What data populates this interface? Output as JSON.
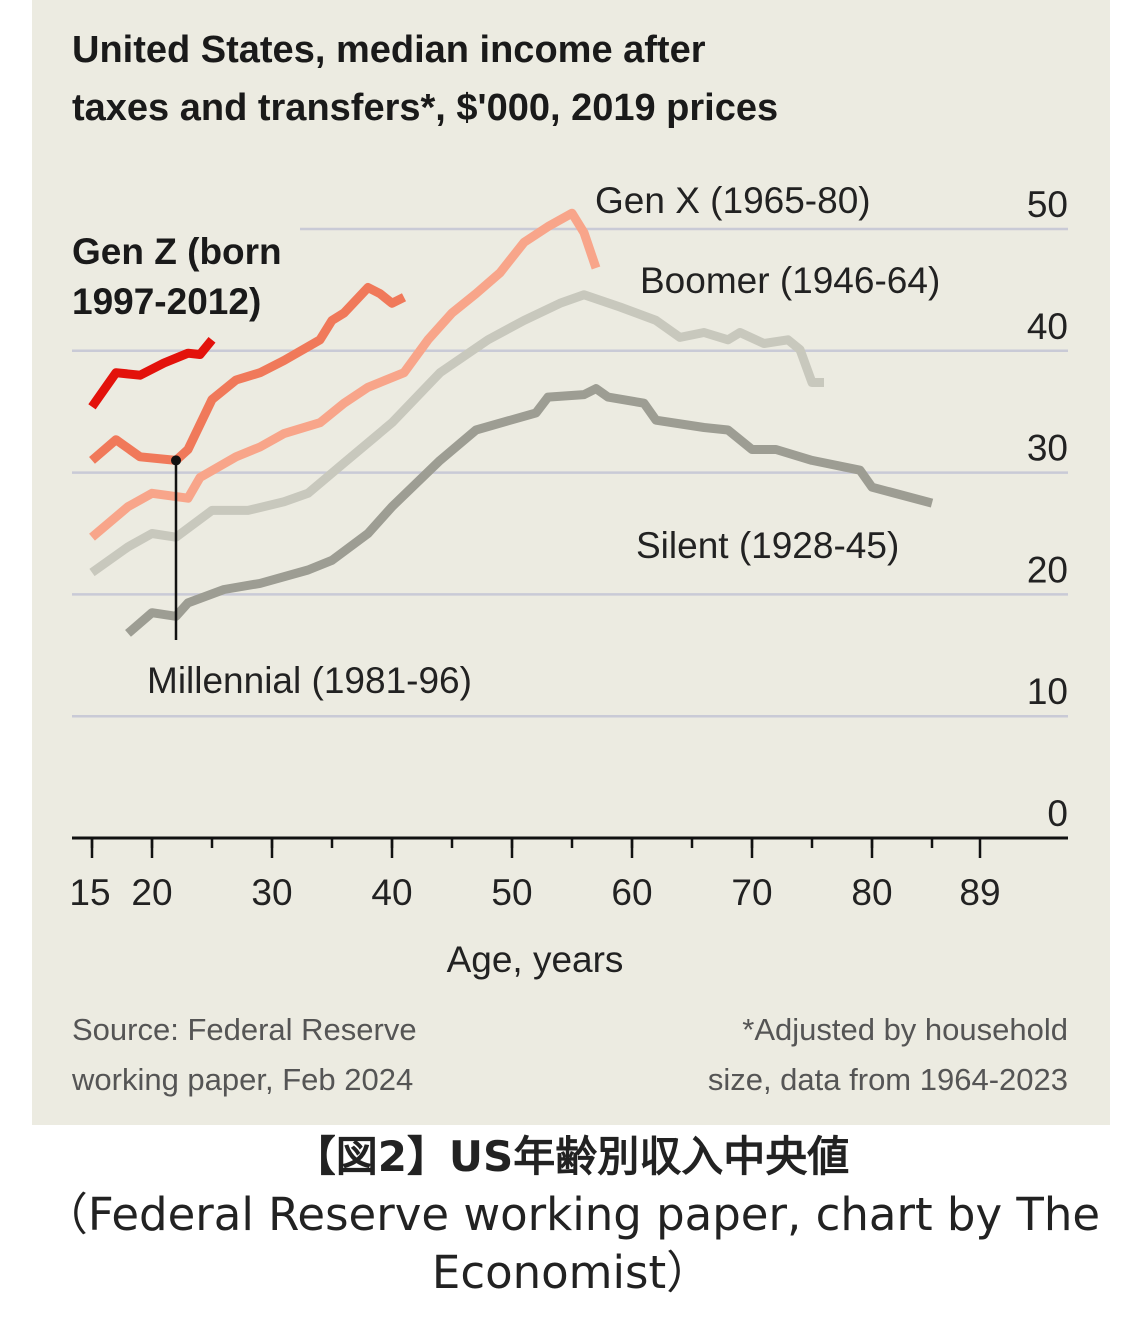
{
  "chart_data": {
    "type": "line",
    "title": "United States, median income after taxes and transfers*, $'000, 2019 prices",
    "title_lines": [
      "United States, median income after",
      "taxes and transfers*, $'000, 2019 prices"
    ],
    "xlabel": "Age, years",
    "ylabel": "",
    "xlim": [
      15,
      89
    ],
    "ylim": [
      0,
      50
    ],
    "x_ticks": [
      15,
      20,
      30,
      40,
      50,
      60,
      70,
      80,
      89
    ],
    "y_ticks": [
      0,
      10,
      20,
      30,
      40,
      50
    ],
    "grid": "horizontal",
    "y_axis_side": "right",
    "series": [
      {
        "name": "Gen Z (born 1997-2012)",
        "name_lines": [
          "Gen Z (born",
          "1997-2012)"
        ],
        "color": "#e3120b",
        "x": [
          15,
          17,
          19,
          21,
          23,
          24,
          25
        ],
        "y": [
          35.4,
          38.2,
          38.0,
          39.0,
          39.8,
          39.7,
          40.9
        ]
      },
      {
        "name": "Millennial (1981-96)",
        "color": "#f0795a",
        "x": [
          15,
          17,
          19,
          22,
          23,
          25,
          27,
          29,
          31,
          34,
          35,
          36,
          38,
          39,
          40,
          41
        ],
        "y": [
          31.0,
          32.7,
          31.3,
          31.0,
          31.9,
          36.0,
          37.6,
          38.2,
          39.2,
          40.9,
          42.5,
          43.1,
          45.2,
          44.7,
          43.9,
          44.4
        ]
      },
      {
        "name": "Gen X (1965-80)",
        "color": "#f8a58a",
        "x": [
          15,
          18,
          20,
          23,
          24,
          27,
          29,
          31,
          34,
          36,
          38,
          41,
          43,
          45,
          47,
          49,
          51,
          53,
          55,
          56,
          57
        ],
        "y": [
          24.7,
          27.2,
          28.3,
          27.9,
          29.6,
          31.3,
          32.1,
          33.2,
          34.1,
          35.7,
          37.0,
          38.2,
          40.9,
          43.1,
          44.7,
          46.4,
          48.9,
          50.2,
          51.3,
          49.7,
          46.8
        ]
      },
      {
        "name": "Boomer (1946-64)",
        "color": "#c8c8bd",
        "x": [
          15,
          18,
          20,
          22,
          25,
          28,
          31,
          33,
          36,
          40,
          44,
          48,
          51,
          54,
          56,
          59,
          62,
          64,
          66,
          68,
          69,
          71,
          73,
          74,
          75,
          76
        ],
        "y": [
          21.8,
          23.9,
          25.0,
          24.7,
          26.9,
          26.9,
          27.6,
          28.3,
          30.8,
          34.1,
          38.2,
          40.9,
          42.5,
          43.9,
          44.6,
          43.6,
          42.5,
          41.1,
          41.5,
          40.9,
          41.5,
          40.6,
          40.9,
          40.1,
          37.4,
          37.4
        ]
      },
      {
        "name": "Silent (1928-45)",
        "color": "#9d9d93",
        "x": [
          18,
          20,
          22,
          23,
          26,
          29,
          33,
          35,
          38,
          40,
          44,
          47,
          52,
          53,
          56,
          57,
          58,
          61,
          62,
          66,
          68,
          70,
          72,
          75,
          79,
          80,
          85
        ],
        "y": [
          16.8,
          18.5,
          18.2,
          19.3,
          20.4,
          20.9,
          22.0,
          22.8,
          25.0,
          27.2,
          31.0,
          33.5,
          34.9,
          36.2,
          36.4,
          36.9,
          36.2,
          35.7,
          34.3,
          33.7,
          33.5,
          31.9,
          31.9,
          31.0,
          30.2,
          28.8,
          27.5
        ]
      }
    ],
    "marker": {
      "series": "Millennial (1981-96)",
      "x": 22,
      "y": 31.0
    },
    "footnote_source": [
      "Source: Federal Reserve",
      "working paper, Feb 2024"
    ],
    "footnote_note": [
      "*Adjusted by household",
      "size, data from 1964-2023"
    ]
  },
  "caption": {
    "title": "【図2】US年齢別収入中央値",
    "subtitle": "（Federal Reserve working paper, chart by The Economist）"
  }
}
